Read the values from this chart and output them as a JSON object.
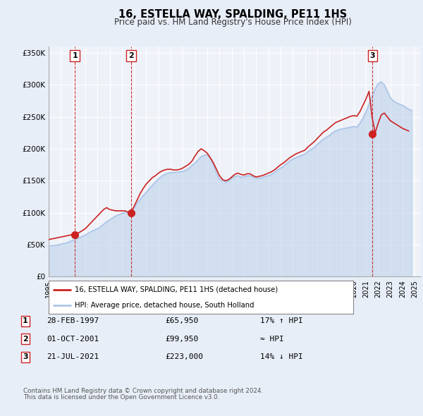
{
  "title": "16, ESTELLA WAY, SPALDING, PE11 1HS",
  "subtitle": "Price paid vs. HM Land Registry's House Price Index (HPI)",
  "xlim": [
    1995.0,
    2025.5
  ],
  "ylim": [
    0,
    360000
  ],
  "yticks": [
    0,
    50000,
    100000,
    150000,
    200000,
    250000,
    300000,
    350000
  ],
  "ytick_labels": [
    "£0",
    "£50K",
    "£100K",
    "£150K",
    "£200K",
    "£250K",
    "£300K",
    "£350K"
  ],
  "xtick_years": [
    1995,
    1996,
    1997,
    1998,
    1999,
    2000,
    2001,
    2002,
    2003,
    2004,
    2005,
    2006,
    2007,
    2008,
    2009,
    2010,
    2011,
    2012,
    2013,
    2014,
    2015,
    2016,
    2017,
    2018,
    2019,
    2020,
    2021,
    2022,
    2023,
    2024,
    2025
  ],
  "hpi_color": "#adc6e8",
  "price_color": "#cc2222",
  "bg_color": "#e8eef8",
  "plot_bg": "#eef2f8",
  "grid_color": "#ffffff",
  "vline_color": "#cc2222",
  "sale1_year": 1997.16,
  "sale1_price": 65950,
  "sale2_year": 2001.75,
  "sale2_price": 99950,
  "sale3_year": 2021.54,
  "sale3_price": 223000,
  "legend_line1": "16, ESTELLA WAY, SPALDING, PE11 1HS (detached house)",
  "legend_line2": "HPI: Average price, detached house, South Holland",
  "table_rows": [
    {
      "num": "1",
      "date": "28-FEB-1997",
      "price": "£65,950",
      "rel": "17% ↑ HPI"
    },
    {
      "num": "2",
      "date": "01-OCT-2001",
      "price": "£99,950",
      "rel": "≈ HPI"
    },
    {
      "num": "3",
      "date": "21-JUL-2021",
      "price": "£223,000",
      "rel": "14% ↓ HPI"
    }
  ],
  "footnote1": "Contains HM Land Registry data © Crown copyright and database right 2024.",
  "footnote2": "This data is licensed under the Open Government Licence v3.0.",
  "hpi_data_x": [
    1995.0,
    1995.25,
    1995.5,
    1995.75,
    1996.0,
    1996.25,
    1996.5,
    1996.75,
    1997.0,
    1997.25,
    1997.5,
    1997.75,
    1998.0,
    1998.25,
    1998.5,
    1998.75,
    1999.0,
    1999.25,
    1999.5,
    1999.75,
    2000.0,
    2000.25,
    2000.5,
    2000.75,
    2001.0,
    2001.25,
    2001.5,
    2001.75,
    2002.0,
    2002.25,
    2002.5,
    2002.75,
    2003.0,
    2003.25,
    2003.5,
    2003.75,
    2004.0,
    2004.25,
    2004.5,
    2004.75,
    2005.0,
    2005.25,
    2005.5,
    2005.75,
    2006.0,
    2006.25,
    2006.5,
    2006.75,
    2007.0,
    2007.25,
    2007.5,
    2007.75,
    2008.0,
    2008.25,
    2008.5,
    2008.75,
    2009.0,
    2009.25,
    2009.5,
    2009.75,
    2010.0,
    2010.25,
    2010.5,
    2010.75,
    2011.0,
    2011.25,
    2011.5,
    2011.75,
    2012.0,
    2012.25,
    2012.5,
    2012.75,
    2013.0,
    2013.25,
    2013.5,
    2013.75,
    2014.0,
    2014.25,
    2014.5,
    2014.75,
    2015.0,
    2015.25,
    2015.5,
    2015.75,
    2016.0,
    2016.25,
    2016.5,
    2016.75,
    2017.0,
    2017.25,
    2017.5,
    2017.75,
    2018.0,
    2018.25,
    2018.5,
    2018.75,
    2019.0,
    2019.25,
    2019.5,
    2019.75,
    2020.0,
    2020.25,
    2020.5,
    2020.75,
    2021.0,
    2021.25,
    2021.5,
    2021.75,
    2022.0,
    2022.25,
    2022.5,
    2022.75,
    2023.0,
    2023.25,
    2023.5,
    2023.75,
    2024.0,
    2024.25,
    2024.5,
    2024.75
  ],
  "hpi_data_y": [
    48000,
    48500,
    49000,
    49500,
    51000,
    52000,
    53000,
    55000,
    57000,
    59000,
    61000,
    63000,
    65000,
    68000,
    71000,
    73000,
    75000,
    78000,
    82000,
    86000,
    89000,
    92000,
    95000,
    97000,
    99000,
    100500,
    101000,
    101500,
    108000,
    115000,
    121000,
    127000,
    132000,
    138000,
    143000,
    148000,
    153000,
    157000,
    160000,
    162000,
    163000,
    163000,
    163500,
    164000,
    165000,
    167000,
    170000,
    174000,
    178000,
    183000,
    188000,
    190000,
    191000,
    185000,
    175000,
    162000,
    153000,
    150000,
    148000,
    150000,
    154000,
    157000,
    158000,
    156000,
    156000,
    158000,
    158000,
    156000,
    154000,
    154000,
    155000,
    157000,
    158000,
    160000,
    163000,
    167000,
    170000,
    173000,
    177000,
    181000,
    184000,
    186000,
    188000,
    190000,
    192000,
    196000,
    199000,
    202000,
    207000,
    211000,
    215000,
    218000,
    221000,
    225000,
    228000,
    230000,
    231000,
    232000,
    233000,
    234000,
    235000,
    234000,
    240000,
    248000,
    258000,
    270000,
    282000,
    294000,
    302000,
    305000,
    300000,
    290000,
    280000,
    275000,
    272000,
    270000,
    268000,
    265000,
    262000,
    260000
  ],
  "price_data_x": [
    1995.0,
    1995.25,
    1995.5,
    1995.75,
    1996.0,
    1996.25,
    1996.5,
    1996.75,
    1997.0,
    1997.25,
    1997.5,
    1997.75,
    1998.0,
    1998.25,
    1998.5,
    1998.75,
    1999.0,
    1999.25,
    1999.5,
    1999.75,
    2000.0,
    2000.25,
    2000.5,
    2000.75,
    2001.0,
    2001.25,
    2001.5,
    2001.75,
    2002.0,
    2002.25,
    2002.5,
    2002.75,
    2003.0,
    2003.25,
    2003.5,
    2003.75,
    2004.0,
    2004.25,
    2004.5,
    2004.75,
    2005.0,
    2005.25,
    2005.5,
    2005.75,
    2006.0,
    2006.25,
    2006.5,
    2006.75,
    2007.0,
    2007.25,
    2007.5,
    2007.75,
    2008.0,
    2008.25,
    2008.5,
    2008.75,
    2009.0,
    2009.25,
    2009.5,
    2009.75,
    2010.0,
    2010.25,
    2010.5,
    2010.75,
    2011.0,
    2011.25,
    2011.5,
    2011.75,
    2012.0,
    2012.25,
    2012.5,
    2012.75,
    2013.0,
    2013.25,
    2013.5,
    2013.75,
    2014.0,
    2014.25,
    2014.5,
    2014.75,
    2015.0,
    2015.25,
    2015.5,
    2015.75,
    2016.0,
    2016.25,
    2016.5,
    2016.75,
    2017.0,
    2017.25,
    2017.5,
    2017.75,
    2018.0,
    2018.25,
    2018.5,
    2018.75,
    2019.0,
    2019.25,
    2019.5,
    2019.75,
    2020.0,
    2020.25,
    2020.5,
    2020.75,
    2021.0,
    2021.25,
    2021.5,
    2021.75,
    2022.0,
    2022.25,
    2022.5,
    2022.75,
    2023.0,
    2023.25,
    2023.5,
    2023.75,
    2024.0,
    2024.25,
    2024.5
  ],
  "price_data_y": [
    58000,
    59000,
    60000,
    61000,
    62000,
    63000,
    64000,
    65000,
    66000,
    67500,
    69000,
    72000,
    75000,
    80000,
    85000,
    90000,
    95000,
    100000,
    105000,
    108000,
    105000,
    104000,
    103000,
    103000,
    103000,
    103000,
    101000,
    100000,
    110000,
    120000,
    130000,
    138000,
    145000,
    150000,
    155000,
    158000,
    162000,
    165000,
    167000,
    168000,
    168000,
    167000,
    167000,
    168000,
    170000,
    173000,
    176000,
    181000,
    189000,
    196000,
    200000,
    197000,
    193000,
    186000,
    178000,
    168000,
    158000,
    152000,
    150000,
    152000,
    156000,
    160000,
    162000,
    160000,
    159000,
    161000,
    161000,
    158000,
    156000,
    157000,
    158000,
    160000,
    162000,
    164000,
    167000,
    171000,
    175000,
    178000,
    182000,
    186000,
    189000,
    192000,
    194000,
    196000,
    198000,
    203000,
    207000,
    211000,
    216000,
    221000,
    226000,
    229000,
    233000,
    237000,
    241000,
    243000,
    245000,
    247000,
    249000,
    251000,
    252000,
    251000,
    258000,
    268000,
    278000,
    290000,
    250000,
    225000,
    240000,
    253000,
    256000,
    250000,
    244000,
    241000,
    238000,
    235000,
    232000,
    230000,
    228000
  ]
}
